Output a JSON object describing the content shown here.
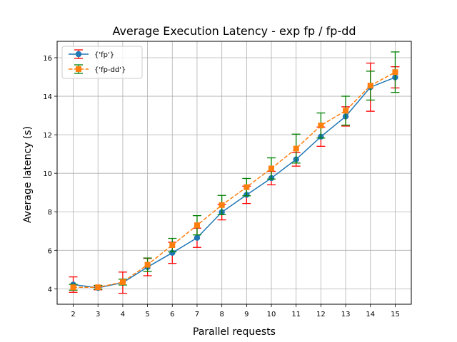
{
  "chart_data": {
    "type": "line",
    "title": "Average Execution Latency - exp fp / fp-dd",
    "xlabel": "Parallel requests",
    "ylabel": "Average latency (s)",
    "x": [
      2,
      3,
      4,
      5,
      6,
      7,
      8,
      9,
      10,
      11,
      12,
      13,
      14,
      15
    ],
    "xlim": [
      1.35,
      15.65
    ],
    "ylim": [
      3.2,
      16.85
    ],
    "yticks": [
      4,
      6,
      8,
      10,
      12,
      14,
      16
    ],
    "grid": true,
    "legend_position": "upper-left",
    "series": [
      {
        "name": "{'fp'}",
        "color": "#1f77b4",
        "error_color": "#ff0000",
        "marker": "circle",
        "linestyle": "solid",
        "values": [
          4.22,
          4.05,
          4.32,
          5.13,
          5.87,
          6.65,
          7.98,
          8.88,
          9.75,
          10.72,
          11.9,
          12.95,
          14.47,
          14.98
        ],
        "error": [
          0.4,
          0.1,
          0.55,
          0.45,
          0.55,
          0.5,
          0.4,
          0.45,
          0.35,
          0.35,
          0.5,
          0.5,
          1.25,
          0.55
        ]
      },
      {
        "name": "{'fp-dd'}",
        "color": "#ff7f0e",
        "error_color": "#008000",
        "marker": "square",
        "linestyle": "dashed",
        "values": [
          4.08,
          4.08,
          4.35,
          5.25,
          6.27,
          7.3,
          8.35,
          9.28,
          10.25,
          11.28,
          12.48,
          13.25,
          14.55,
          15.25
        ],
        "error": [
          0.15,
          0.1,
          0.15,
          0.35,
          0.35,
          0.5,
          0.5,
          0.45,
          0.55,
          0.75,
          0.65,
          0.75,
          0.75,
          1.05
        ]
      }
    ]
  }
}
